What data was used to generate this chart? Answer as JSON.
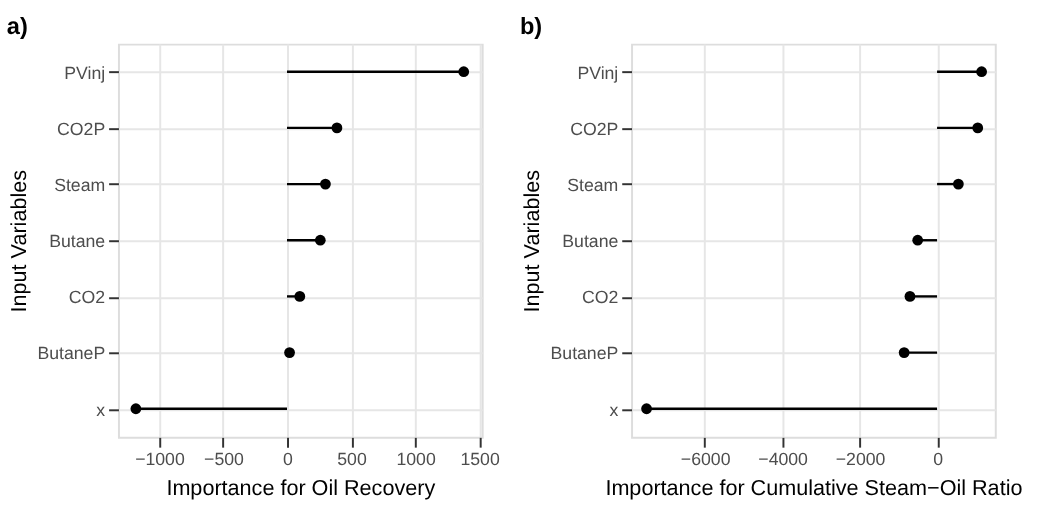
{
  "chart_data": [
    {
      "type": "lollipop",
      "title": "a)",
      "orientation": "horizontal",
      "ylabel": "Input Variables",
      "xlabel": "Importance for Oil Recovery",
      "categories": [
        "PVinj",
        "CO2P",
        "Steam",
        "Butane",
        "CO2",
        "ButaneP",
        "x"
      ],
      "series": [
        {
          "color": "#000000",
          "values": [
            1380,
            390,
            300,
            260,
            100,
            20,
            -1180
          ]
        }
      ],
      "xlim": [
        -1320,
        1520
      ],
      "xticks": [
        -1000,
        -500,
        0,
        500,
        1000,
        1500
      ],
      "grid": true,
      "marker": "circle",
      "legend": false
    },
    {
      "type": "lollipop",
      "title": "b)",
      "orientation": "horizontal",
      "ylabel": "Input Variables",
      "xlabel": "Importance for Cumulative Steam−Oil Ratio",
      "categories": [
        "PVinj",
        "CO2P",
        "Steam",
        "Butane",
        "CO2",
        "ButaneP",
        "x"
      ],
      "series": [
        {
          "color": "#000000",
          "values": [
            1150,
            1050,
            550,
            -500,
            -700,
            -850,
            -7500
          ]
        }
      ],
      "xlim": [
        -7900,
        1490
      ],
      "xticks": [
        -6000,
        -4000,
        -2000,
        0
      ],
      "grid": true,
      "marker": "circle",
      "legend": false
    }
  ]
}
